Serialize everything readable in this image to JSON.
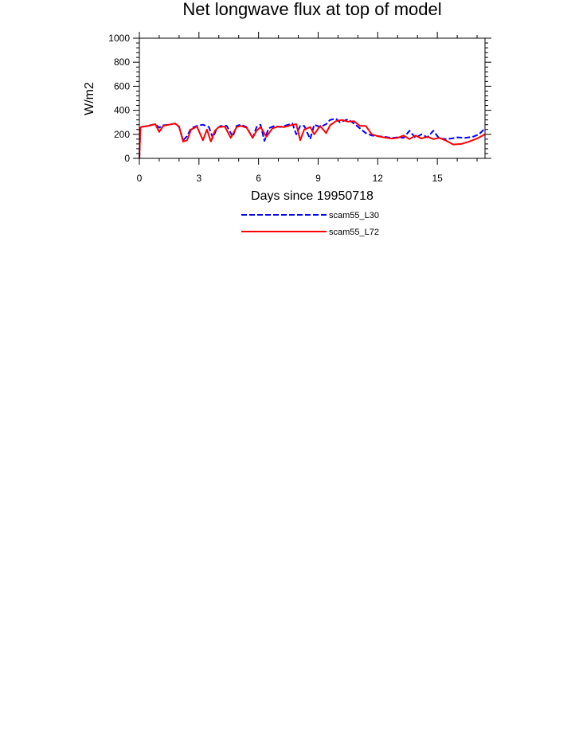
{
  "chart_data": {
    "type": "line",
    "title": "Net longwave flux at top of model",
    "xlabel": "Days since 19950718",
    "ylabel": "W/m2",
    "xlim": [
      0,
      17.4
    ],
    "ylim": [
      0,
      1000
    ],
    "xticks": [
      0,
      3,
      6,
      9,
      12,
      15
    ],
    "yticks": [
      0,
      200,
      400,
      600,
      800,
      1000
    ],
    "grid": false,
    "legend_position": "bottom-center",
    "series": [
      {
        "name": "scam55_L30",
        "color": "#0000ff",
        "dash": "dashed",
        "x": [
          0,
          0.05,
          0.1,
          0.4,
          0.8,
          1.0,
          1.2,
          1.5,
          1.8,
          2.0,
          2.2,
          2.4,
          2.6,
          2.9,
          3.2,
          3.5,
          3.7,
          3.9,
          4.1,
          4.4,
          4.7,
          4.9,
          5.1,
          5.4,
          5.7,
          5.9,
          6.1,
          6.3,
          6.5,
          6.8,
          7.1,
          7.4,
          7.7,
          7.9,
          8.1,
          8.3,
          8.6,
          8.8,
          9.1,
          9.4,
          9.6,
          9.9,
          10.1,
          10.5,
          10.8,
          11.1,
          11.4,
          11.7,
          12.0,
          12.3,
          12.7,
          13.0,
          13.3,
          13.6,
          13.9,
          14.2,
          14.5,
          14.8,
          15.1,
          15.4,
          15.7,
          16.0,
          16.4,
          16.8,
          17.1,
          17.4
        ],
        "values": [
          0,
          255,
          260,
          270,
          285,
          255,
          275,
          280,
          290,
          260,
          150,
          185,
          250,
          270,
          280,
          260,
          170,
          250,
          270,
          270,
          180,
          270,
          280,
          260,
          170,
          260,
          280,
          145,
          250,
          270,
          260,
          275,
          290,
          200,
          270,
          270,
          160,
          280,
          260,
          285,
          320,
          330,
          300,
          325,
          290,
          250,
          210,
          190,
          185,
          180,
          170,
          175,
          170,
          230,
          170,
          200,
          175,
          230,
          165,
          160,
          165,
          175,
          170,
          180,
          200,
          250
        ]
      },
      {
        "name": "scam55_L72",
        "color": "#ff0000",
        "dash": "solid",
        "x": [
          0,
          0.05,
          0.1,
          0.4,
          0.8,
          1.0,
          1.2,
          1.5,
          1.8,
          2.0,
          2.2,
          2.4,
          2.6,
          2.9,
          3.2,
          3.4,
          3.6,
          3.8,
          4.0,
          4.3,
          4.6,
          4.9,
          5.1,
          5.4,
          5.7,
          5.9,
          6.1,
          6.4,
          6.7,
          7.0,
          7.3,
          7.6,
          7.9,
          8.1,
          8.3,
          8.6,
          8.8,
          9.1,
          9.4,
          9.6,
          9.9,
          10.2,
          10.5,
          10.8,
          11.1,
          11.4,
          11.7,
          12.0,
          12.3,
          12.7,
          13.0,
          13.3,
          13.6,
          13.9,
          14.2,
          14.5,
          14.8,
          15.1,
          15.4,
          15.8,
          16.2,
          16.6,
          17.0,
          17.4
        ],
        "values": [
          0,
          255,
          262,
          268,
          285,
          220,
          270,
          280,
          290,
          265,
          140,
          150,
          240,
          265,
          150,
          240,
          140,
          230,
          260,
          265,
          170,
          260,
          270,
          255,
          170,
          230,
          260,
          180,
          250,
          265,
          260,
          275,
          285,
          150,
          240,
          260,
          200,
          270,
          210,
          275,
          310,
          320,
          305,
          310,
          270,
          270,
          200,
          185,
          175,
          165,
          170,
          190,
          160,
          190,
          165,
          180,
          160,
          170,
          150,
          115,
          120,
          140,
          165,
          200
        ]
      }
    ]
  }
}
